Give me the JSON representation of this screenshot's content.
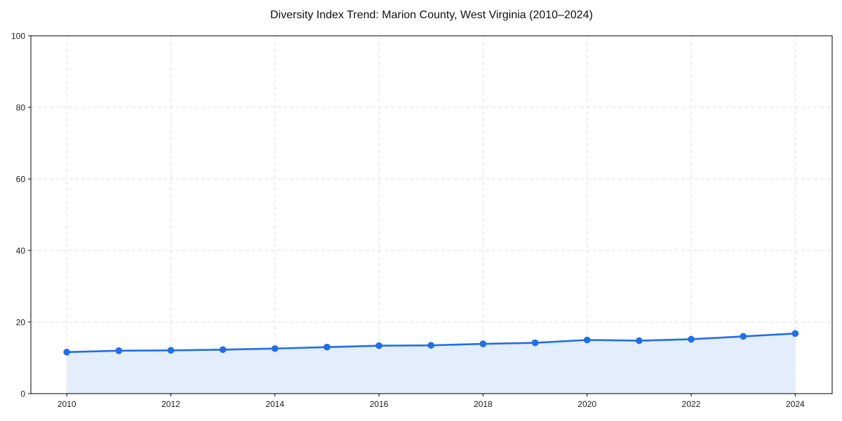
{
  "chart_data": {
    "type": "line",
    "title": "Diversity Index Trend: Marion County, West Virginia (2010–2024)",
    "xlabel": "",
    "ylabel": "",
    "series_name": "Diversity Index",
    "x": [
      2010,
      2011,
      2012,
      2013,
      2014,
      2015,
      2016,
      2017,
      2018,
      2019,
      2020,
      2021,
      2022,
      2023,
      2024
    ],
    "values": [
      11.6,
      12.0,
      12.1,
      12.3,
      12.6,
      13.0,
      13.4,
      13.5,
      13.9,
      14.2,
      15.0,
      14.8,
      15.2,
      16.0,
      16.8
    ],
    "xlim": [
      2009.31,
      2024.71
    ],
    "ylim": [
      0,
      100
    ],
    "xticks": [
      2010,
      2012,
      2014,
      2016,
      2018,
      2020,
      2022,
      2024
    ],
    "yticks": [
      0,
      20,
      40,
      60,
      80,
      100
    ],
    "grid": true,
    "grid_style": "dashed",
    "legend": false,
    "marker": "circle",
    "area_fill": true,
    "colors": {
      "line": "#1e6fe8",
      "marker": "#1e6fe8",
      "fill": "#e4edfc",
      "grid": "#dedede",
      "axis": "#000000",
      "tick_label": "#1a1a1a",
      "title": "#111111",
      "background": "#ffffff"
    }
  }
}
